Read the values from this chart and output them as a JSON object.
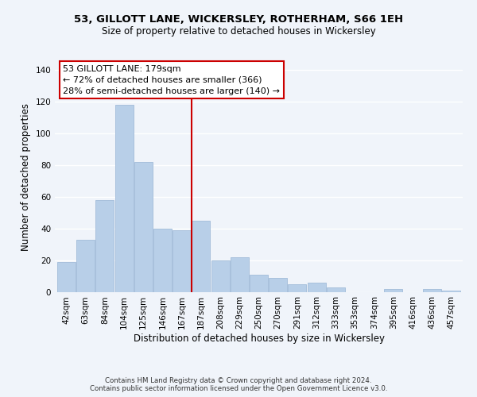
{
  "title_line1": "53, GILLOTT LANE, WICKERSLEY, ROTHERHAM, S66 1EH",
  "title_line2": "Size of property relative to detached houses in Wickersley",
  "xlabel": "Distribution of detached houses by size in Wickersley",
  "ylabel": "Number of detached properties",
  "bar_labels": [
    "42sqm",
    "63sqm",
    "84sqm",
    "104sqm",
    "125sqm",
    "146sqm",
    "167sqm",
    "187sqm",
    "208sqm",
    "229sqm",
    "250sqm",
    "270sqm",
    "291sqm",
    "312sqm",
    "333sqm",
    "353sqm",
    "374sqm",
    "395sqm",
    "416sqm",
    "436sqm",
    "457sqm"
  ],
  "bar_values": [
    19,
    33,
    58,
    118,
    82,
    40,
    39,
    45,
    20,
    22,
    11,
    9,
    5,
    6,
    3,
    0,
    0,
    2,
    0,
    2,
    1
  ],
  "bar_color": "#b8cfe8",
  "bar_edge_color": "#a8c0dc",
  "vline_x_index": 7,
  "vline_color": "#cc0000",
  "ylim": [
    0,
    145
  ],
  "yticks": [
    0,
    20,
    40,
    60,
    80,
    100,
    120,
    140
  ],
  "annotation_title": "53 GILLOTT LANE: 179sqm",
  "annotation_line1": "← 72% of detached houses are smaller (366)",
  "annotation_line2": "28% of semi-detached houses are larger (140) →",
  "annotation_box_color": "#ffffff",
  "annotation_box_edge": "#cc0000",
  "footer_line1": "Contains HM Land Registry data © Crown copyright and database right 2024.",
  "footer_line2": "Contains public sector information licensed under the Open Government Licence v3.0.",
  "background_color": "#f0f4fa",
  "grid_color": "#ffffff",
  "title1_fontsize": 9.5,
  "title2_fontsize": 8.5,
  "xlabel_fontsize": 8.5,
  "ylabel_fontsize": 8.5,
  "tick_fontsize": 7.5,
  "footer_fontsize": 6.2,
  "ann_fontsize": 8.0
}
